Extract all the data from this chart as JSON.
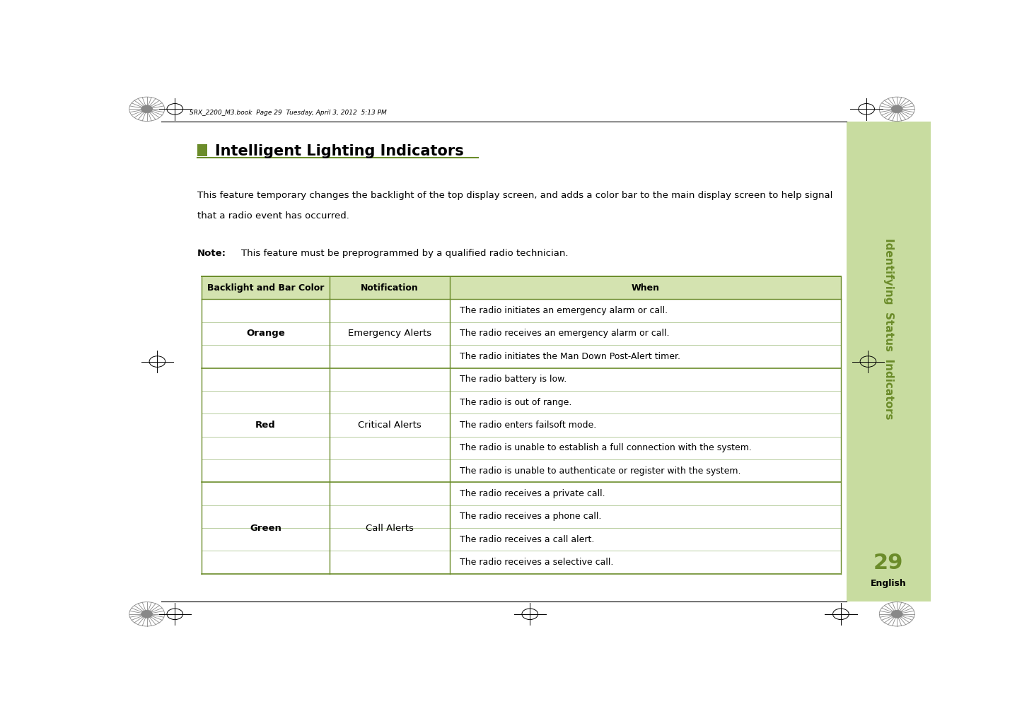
{
  "page_bg": "#ffffff",
  "title": "Intelligent Lighting Indicators",
  "title_square_color": "#6b8c2a",
  "title_underline_color": "#6b8c2a",
  "body_text_line1": "This feature temporary changes the backlight of the top display screen, and adds a color bar to the main display screen to help signal",
  "body_text_line2": "that a radio event has occurred.",
  "note_label": "Note:",
  "note_text": "This feature must be preprogrammed by a qualified radio technician.",
  "table_header_bg": "#d4e3b0",
  "table_header_border": "#6b8c2a",
  "table_col1_header": "Backlight and Bar Color",
  "table_col2_header": "Notification",
  "table_col3_header": "When",
  "table_row_border": "#6b8c2a",
  "table_inner_border": "#b8ceA0",
  "rows": [
    {
      "color_label": "Orange",
      "notification": "Emergency Alerts",
      "when_items": [
        "The radio initiates an emergency alarm or call.",
        "The radio receives an emergency alarm or call.",
        "The radio initiates the Man Down Post-Alert timer."
      ]
    },
    {
      "color_label": "Red",
      "notification": "Critical Alerts",
      "when_items": [
        "The radio battery is low.",
        "The radio is out of range.",
        "The radio enters failsoft mode.",
        "The radio is unable to establish a full connection with the system.",
        "The radio is unable to authenticate or register with the system."
      ]
    },
    {
      "color_label": "Green",
      "notification": "Call Alerts",
      "when_items": [
        "The radio receives a private call.",
        "The radio receives a phone call.",
        "The radio receives a call alert.",
        "The radio receives a selective call."
      ]
    }
  ],
  "sidebar_bg": "#c8dca0",
  "sidebar_text": "Identifying  Status  Indicators",
  "page_number": "29",
  "page_number_color": "#6b8c2a",
  "english_label": "English",
  "header_text": "SRX_2200_M3.book  Page 29  Tuesday, April 3, 2012  5:13 PM"
}
